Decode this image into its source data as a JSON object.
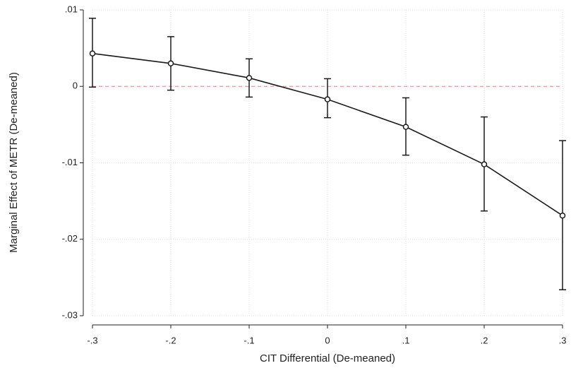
{
  "chart_data": {
    "type": "line",
    "x_label": "CIT Differential (De-meaned)",
    "y_label": "Marginal Effect of METR (De-meaned)",
    "x": [
      -0.3,
      -0.2,
      -0.1,
      0,
      0.1,
      0.2,
      0.3
    ],
    "series": [
      {
        "color": "#1a1a1a",
        "values": [
          0.0043,
          0.003,
          0.0011,
          -0.0017,
          -0.0053,
          -0.0102,
          -0.0169
        ],
        "lower": [
          -0.0001,
          -0.0005,
          -0.0014,
          -0.0041,
          -0.009,
          -0.0163,
          -0.0266
        ],
        "upper": [
          0.0089,
          0.0065,
          0.0036,
          0.001,
          -0.0015,
          -0.004,
          -0.0071
        ]
      }
    ],
    "xlim": [
      -0.3,
      0.3
    ],
    "xticks": [
      {
        "value": -0.3,
        "label": "-.3"
      },
      {
        "value": -0.2,
        "label": "-.2"
      },
      {
        "value": -0.1,
        "label": "-.1"
      },
      0,
      {
        "value": 0.1,
        "label": ".1"
      },
      {
        "value": 0.2,
        "label": ".2"
      },
      {
        "value": 0.3,
        "label": ".3"
      }
    ],
    "ylim": [
      -0.03,
      0.01
    ],
    "yticks": [
      {
        "value": 0.01,
        "label": ".01"
      },
      0,
      {
        "value": -0.01,
        "label": "-.01"
      },
      {
        "value": -0.02,
        "label": "-.02"
      },
      {
        "value": -0.03,
        "label": "-.03"
      }
    ],
    "grid": true,
    "reference_line": {
      "y": 0,
      "color": "#d9899a"
    }
  }
}
